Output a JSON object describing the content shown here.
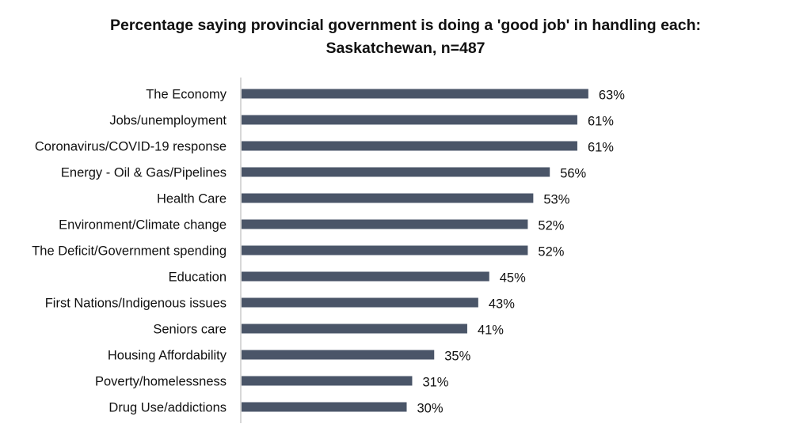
{
  "chart_data": {
    "type": "bar",
    "orientation": "horizontal",
    "title": "Percentage saying provincial government is doing a 'good job' in handling each:",
    "subtitle": "Saskatchewan, n=487",
    "xlabel": "",
    "ylabel": "",
    "xlim": [
      0,
      100
    ],
    "grid": false,
    "legend": "none",
    "bar_color": "#4a5568",
    "axis_color": "#b0b0b0",
    "value_suffix": "%",
    "categories": [
      "The Economy",
      "Jobs/unemployment",
      "Coronavirus/COVID-19 response",
      "Energy - Oil & Gas/Pipelines",
      "Health Care",
      "Environment/Climate change",
      "The Deficit/Government spending",
      "Education",
      "First Nations/Indigenous issues",
      "Seniors care",
      "Housing Affordability",
      "Poverty/homelessness",
      "Drug Use/addictions"
    ],
    "values": [
      63,
      61,
      61,
      56,
      53,
      52,
      52,
      45,
      43,
      41,
      35,
      31,
      30
    ],
    "value_labels": [
      "63%",
      "61%",
      "61%",
      "56%",
      "53%",
      "52%",
      "52%",
      "45%",
      "43%",
      "41%",
      "35%",
      "31%",
      "30%"
    ]
  }
}
